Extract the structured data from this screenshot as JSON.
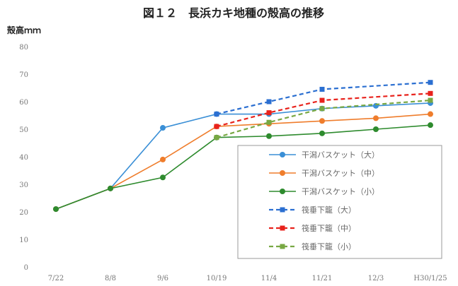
{
  "chart_data": {
    "type": "line",
    "title": "図１２　長浜カキ地種の殻高の推移",
    "ylabel": "殻高ｍｍ",
    "xlabel": "",
    "categories": [
      "7/22",
      "8/8",
      "9/6",
      "10/19",
      "11/4",
      "11/21",
      "12/3",
      "H30/1/25"
    ],
    "ylim": [
      0,
      80
    ],
    "yticks": [
      0,
      10,
      20,
      30,
      40,
      50,
      60,
      70,
      80
    ],
    "grid": false,
    "legend": "lower-right",
    "series": [
      {
        "name": "干潟バスケット（大）",
        "color": "#3a8fd6",
        "dashed": false,
        "values": [
          21,
          28.5,
          50.5,
          55.5,
          55.5,
          57.5,
          58.5,
          59.5
        ]
      },
      {
        "name": "干潟バスケット（中）",
        "color": "#ef7d2c",
        "dashed": false,
        "values": [
          21,
          28.5,
          39,
          51,
          52,
          53,
          54,
          55.5
        ]
      },
      {
        "name": "干潟バスケット（小）",
        "color": "#2e8b2e",
        "dashed": false,
        "values": [
          21,
          28.5,
          32.5,
          47,
          47.5,
          48.5,
          50,
          51.5
        ]
      },
      {
        "name": "筏垂下籠（大）",
        "color": "#2b6fd1",
        "dashed": true,
        "values": [
          null,
          null,
          null,
          55.5,
          60,
          64.5,
          null,
          67
        ]
      },
      {
        "name": "筏垂下籠（中）",
        "color": "#e8221c",
        "dashed": true,
        "values": [
          null,
          null,
          null,
          51,
          56,
          60.5,
          null,
          63
        ]
      },
      {
        "name": "筏垂下籠（小）",
        "color": "#78a843",
        "dashed": true,
        "values": [
          null,
          null,
          null,
          47,
          52.5,
          57.5,
          null,
          60.5
        ]
      }
    ]
  }
}
